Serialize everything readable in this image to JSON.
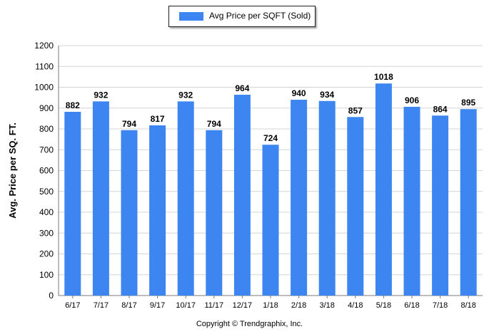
{
  "chart_data": {
    "type": "bar",
    "categories": [
      "6/17",
      "7/17",
      "8/17",
      "9/17",
      "10/17",
      "11/17",
      "12/17",
      "1/18",
      "2/18",
      "3/18",
      "4/18",
      "5/18",
      "6/18",
      "7/18",
      "8/18"
    ],
    "series": [
      {
        "name": "Avg Price per SQFT (Sold)",
        "values": [
          882,
          932,
          794,
          817,
          932,
          794,
          964,
          724,
          940,
          934,
          857,
          1018,
          906,
          864,
          895
        ],
        "color": "#3d85f0"
      }
    ],
    "ylabel": "Avg. Price per SQ. FT.",
    "xlabel": "",
    "ylim": [
      0,
      1200
    ],
    "yticks": [
      0,
      100,
      200,
      300,
      400,
      500,
      600,
      700,
      800,
      900,
      1000,
      1100,
      1200
    ],
    "grid": true,
    "legend_position": "top-center",
    "data_labels": true
  },
  "footer": {
    "copyright": "Copyright © Trendgraphix, Inc."
  }
}
